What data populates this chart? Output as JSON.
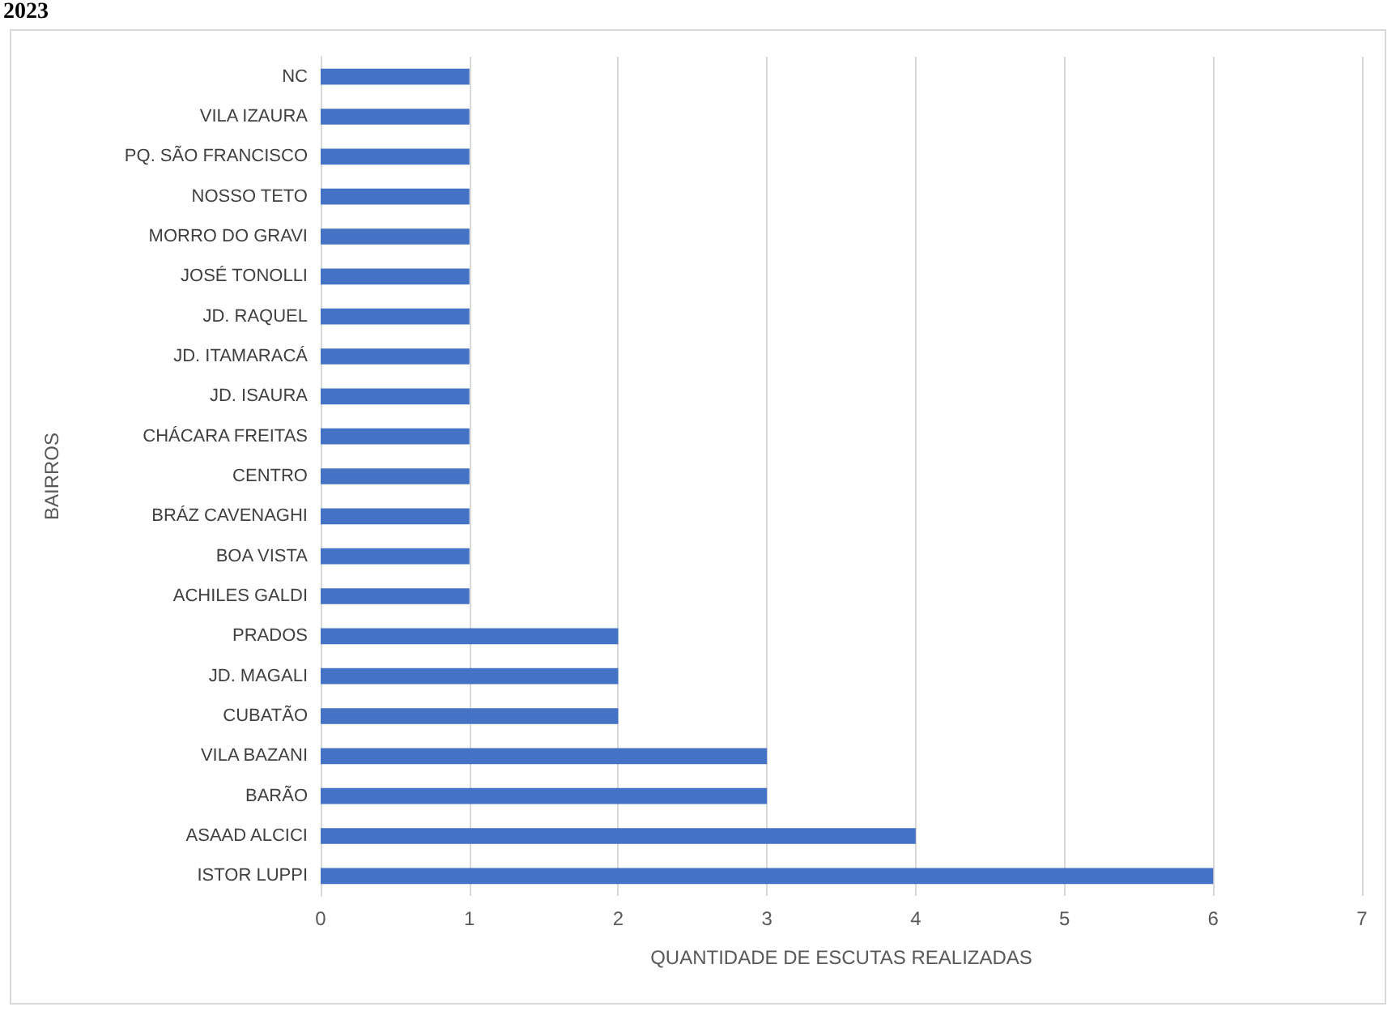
{
  "chart_data": {
    "type": "bar",
    "orientation": "horizontal",
    "annotations": [
      "2023"
    ],
    "xlabel": "QUANTIDADE DE ESCUTAS REALIZADAS",
    "ylabel": "BAIRROS",
    "categories": [
      "NC",
      "VILA IZAURA",
      "PQ. SÃO FRANCISCO",
      "NOSSO TETO",
      "MORRO DO GRAVI",
      "JOSÉ TONOLLI",
      "JD. RAQUEL",
      "JD. ITAMARACÁ",
      "JD. ISAURA",
      "CHÁCARA FREITAS",
      "CENTRO",
      "BRÁZ CAVENAGHI",
      "BOA VISTA",
      "ACHILES GALDI",
      "PRADOS",
      "JD. MAGALI",
      "CUBATÃO",
      "VILA BAZANI",
      "BARÃO",
      "ASAAD ALCICI",
      "ISTOR LUPPI"
    ],
    "values": [
      1,
      1,
      1,
      1,
      1,
      1,
      1,
      1,
      1,
      1,
      1,
      1,
      1,
      1,
      2,
      2,
      2,
      3,
      3,
      4,
      6
    ],
    "color": "#4472c4",
    "xlim": [
      0,
      7
    ],
    "xticks": [
      0,
      1,
      2,
      3,
      4,
      5,
      6,
      7
    ],
    "grid": "x"
  }
}
